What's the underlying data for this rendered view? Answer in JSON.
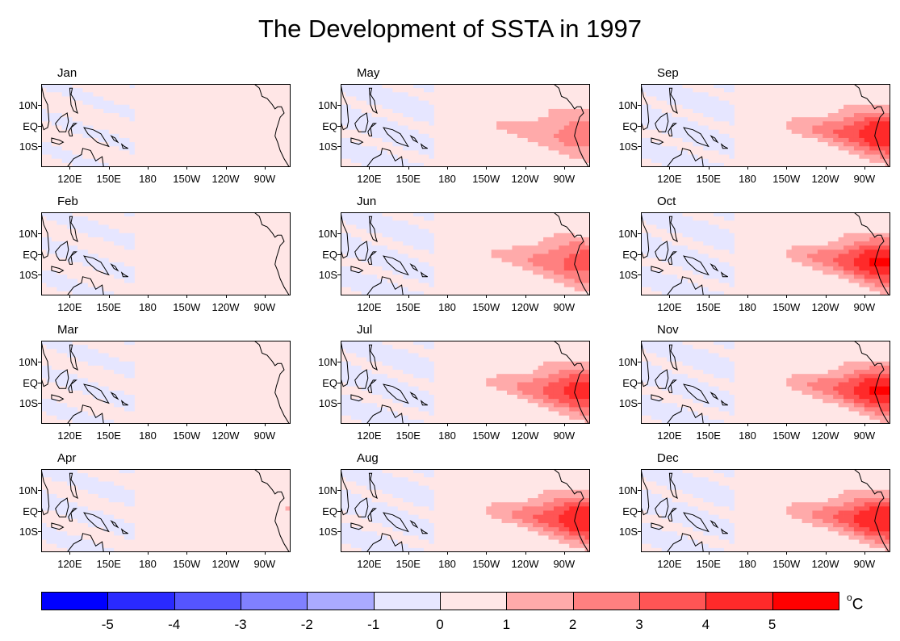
{
  "title": "The Development of SSTA in 1997",
  "chart_data": {
    "type": "heatmap",
    "title": "The Development of SSTA in 1997",
    "layout": "3 columns x 4 rows",
    "x_ticks": [
      "120E",
      "150E",
      "180",
      "150W",
      "120W",
      "90W"
    ],
    "x_tick_lon": [
      120,
      150,
      180,
      210,
      240,
      270
    ],
    "xlim_lon": [
      98,
      290
    ],
    "y_ticks": [
      "10N",
      "EQ",
      "10S"
    ],
    "y_tick_lat": [
      10,
      0,
      -10
    ],
    "ylim_lat": [
      -20,
      20
    ],
    "panels": [
      {
        "month": "Jan",
        "nino_peak": 0.3
      },
      {
        "month": "Feb",
        "nino_peak": 0.5
      },
      {
        "month": "Mar",
        "nino_peak": 0.5
      },
      {
        "month": "Apr",
        "nino_peak": 0.6
      },
      {
        "month": "May",
        "nino_peak": 2.0
      },
      {
        "month": "Jun",
        "nino_peak": 3.0
      },
      {
        "month": "Jul",
        "nino_peak": 4.0
      },
      {
        "month": "Aug",
        "nino_peak": 4.5
      },
      {
        "month": "Sep",
        "nino_peak": 4.5
      },
      {
        "month": "Oct",
        "nino_peak": 4.8
      },
      {
        "month": "Nov",
        "nino_peak": 4.8
      },
      {
        "month": "Dec",
        "nino_peak": 4.6
      }
    ],
    "colorbar": {
      "levels": [
        -6,
        -5,
        -4,
        -3,
        -2,
        -1,
        0,
        1,
        2,
        3,
        4,
        5,
        6
      ],
      "labels": [
        "-5",
        "-4",
        "-3",
        "-2",
        "-1",
        "0",
        "1",
        "2",
        "3",
        "4",
        "5"
      ],
      "colors": [
        "#0000ff",
        "#2a2aff",
        "#5555ff",
        "#8080ff",
        "#aaaaff",
        "#e6e6ff",
        "#ffe6e6",
        "#ffaaaa",
        "#ff8080",
        "#ff5555",
        "#ff2a2a",
        "#ff0000"
      ],
      "unit_sup": "o",
      "unit": "C"
    }
  }
}
